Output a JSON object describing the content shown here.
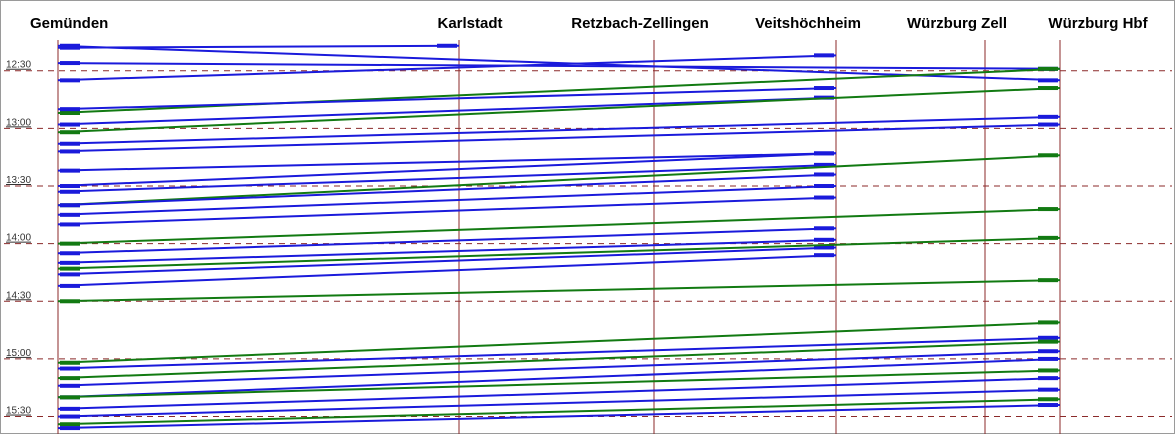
{
  "chart_data": {
    "type": "line",
    "title": "",
    "xlabel": "",
    "ylabel": "",
    "x": [
      "Gemünden",
      "Karlstadt",
      "Retzbach-Zellingen",
      "Veitshöchheim",
      "Würzburg Zell",
      "Würzburg Hbf"
    ],
    "station_km": [
      0,
      14.5,
      22.5,
      30.0,
      35.5,
      39.0
    ],
    "y_ticks": [
      "12:30",
      "13:00",
      "13:30",
      "14:00",
      "14:30",
      "15:00",
      "15:30"
    ],
    "ylim": [
      "12:14",
      "15:37"
    ],
    "grid": true,
    "colors": {
      "southbound": "#1a1adb",
      "northbound": "#127a12",
      "station_line": "#8b2a2a",
      "hour_line": "#8b2a2a"
    },
    "series": [
      {
        "direction": "southbound",
        "points": [
          [
            "Gemünden",
            "12:18"
          ],
          [
            "Karlstadt",
            "12:17"
          ]
        ]
      },
      {
        "direction": "southbound",
        "points": [
          [
            "Gemünden",
            "12:17"
          ],
          [
            "Würzburg Hbf",
            "12:35"
          ]
        ]
      },
      {
        "direction": "southbound",
        "points": [
          [
            "Gemünden",
            "12:26"
          ],
          [
            "Würzburg Hbf",
            "12:29"
          ]
        ]
      },
      {
        "direction": "southbound",
        "points": [
          [
            "Gemünden",
            "12:35"
          ],
          [
            "Veitshöchheim",
            "12:22"
          ]
        ]
      },
      {
        "direction": "northbound",
        "points": [
          [
            "Gemünden",
            "12:52"
          ],
          [
            "Würzburg Hbf",
            "12:29"
          ]
        ]
      },
      {
        "direction": "southbound",
        "points": [
          [
            "Gemünden",
            "12:50"
          ],
          [
            "Veitshöchheim",
            "12:39"
          ]
        ]
      },
      {
        "direction": "southbound",
        "points": [
          [
            "Gemünden",
            "12:58"
          ],
          [
            "Veitshöchheim",
            "12:44"
          ]
        ]
      },
      {
        "direction": "northbound",
        "points": [
          [
            "Gemünden",
            "13:02"
          ],
          [
            "Würzburg Hbf",
            "12:39"
          ]
        ]
      },
      {
        "direction": "southbound",
        "points": [
          [
            "Gemünden",
            "13:08"
          ],
          [
            "Würzburg Hbf",
            "12:54"
          ]
        ]
      },
      {
        "direction": "southbound",
        "points": [
          [
            "Gemünden",
            "13:12"
          ],
          [
            "Würzburg Hbf",
            "12:58"
          ]
        ]
      },
      {
        "direction": "southbound",
        "points": [
          [
            "Gemünden",
            "13:22"
          ],
          [
            "Veitshöchheim",
            "13:13"
          ]
        ]
      },
      {
        "direction": "southbound",
        "points": [
          [
            "Gemünden",
            "13:30"
          ],
          [
            "Veitshöchheim",
            "13:13"
          ]
        ]
      },
      {
        "direction": "southbound",
        "points": [
          [
            "Gemünden",
            "13:33"
          ],
          [
            "Veitshöchheim",
            "13:19"
          ]
        ]
      },
      {
        "direction": "northbound",
        "points": [
          [
            "Gemünden",
            "13:40"
          ],
          [
            "Würzburg Hbf",
            "13:14"
          ]
        ]
      },
      {
        "direction": "southbound",
        "points": [
          [
            "Gemünden",
            "13:40"
          ],
          [
            "Veitshöchheim",
            "13:24"
          ]
        ]
      },
      {
        "direction": "southbound",
        "points": [
          [
            "Gemünden",
            "13:45"
          ],
          [
            "Veitshöchheim",
            "13:30"
          ]
        ]
      },
      {
        "direction": "southbound",
        "points": [
          [
            "Gemünden",
            "13:50"
          ],
          [
            "Veitshöchheim",
            "13:36"
          ]
        ]
      },
      {
        "direction": "northbound",
        "points": [
          [
            "Gemünden",
            "14:00"
          ],
          [
            "Würzburg Hbf",
            "13:42"
          ]
        ]
      },
      {
        "direction": "southbound",
        "points": [
          [
            "Gemünden",
            "14:05"
          ],
          [
            "Veitshöchheim",
            "13:52"
          ]
        ]
      },
      {
        "direction": "southbound",
        "points": [
          [
            "Gemünden",
            "14:10"
          ],
          [
            "Veitshöchheim",
            "13:58"
          ]
        ]
      },
      {
        "direction": "southbound",
        "points": [
          [
            "Gemünden",
            "14:16"
          ],
          [
            "Veitshöchheim",
            "14:02"
          ]
        ]
      },
      {
        "direction": "northbound",
        "points": [
          [
            "Gemünden",
            "14:13"
          ],
          [
            "Würzburg Hbf",
            "13:57"
          ]
        ]
      },
      {
        "direction": "southbound",
        "points": [
          [
            "Gemünden",
            "14:22"
          ],
          [
            "Veitshöchheim",
            "14:06"
          ]
        ]
      },
      {
        "direction": "northbound",
        "points": [
          [
            "Gemünden",
            "14:30"
          ],
          [
            "Würzburg Hbf",
            "14:19"
          ]
        ]
      },
      {
        "direction": "northbound",
        "points": [
          [
            "Gemünden",
            "15:02"
          ],
          [
            "Würzburg Hbf",
            "14:41"
          ]
        ]
      },
      {
        "direction": "southbound",
        "points": [
          [
            "Gemünden",
            "15:05"
          ],
          [
            "Würzburg Hbf",
            "14:49"
          ]
        ]
      },
      {
        "direction": "northbound",
        "points": [
          [
            "Gemünden",
            "15:10"
          ],
          [
            "Würzburg Hbf",
            "14:51"
          ]
        ]
      },
      {
        "direction": "southbound",
        "points": [
          [
            "Gemünden",
            "15:14"
          ],
          [
            "Würzburg Hbf",
            "14:56"
          ]
        ]
      },
      {
        "direction": "southbound",
        "points": [
          [
            "Gemünden",
            "15:20"
          ],
          [
            "Würzburg Hbf",
            "15:00"
          ]
        ]
      },
      {
        "direction": "northbound",
        "points": [
          [
            "Gemünden",
            "15:20"
          ],
          [
            "Würzburg Hbf",
            "15:06"
          ]
        ]
      },
      {
        "direction": "southbound",
        "points": [
          [
            "Gemünden",
            "15:26"
          ],
          [
            "Würzburg Hbf",
            "15:10"
          ]
        ]
      },
      {
        "direction": "southbound",
        "points": [
          [
            "Gemünden",
            "15:30"
          ],
          [
            "Würzburg Hbf",
            "15:16"
          ]
        ]
      },
      {
        "direction": "northbound",
        "points": [
          [
            "Gemünden",
            "15:34"
          ],
          [
            "Würzburg Hbf",
            "15:21"
          ]
        ]
      },
      {
        "direction": "southbound",
        "points": [
          [
            "Gemünden",
            "15:36"
          ],
          [
            "Würzburg Hbf",
            "15:24"
          ]
        ]
      }
    ]
  }
}
